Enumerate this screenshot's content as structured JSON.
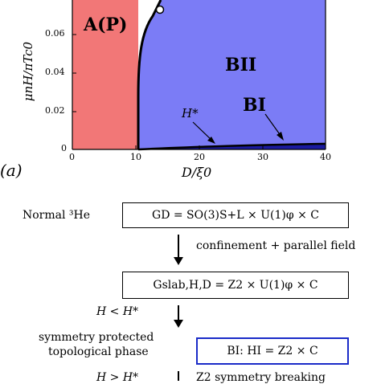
{
  "figure": {
    "panel_label": "(a)",
    "plot": {
      "ylabel": "μnH/πTc0",
      "xlabel": "D/ξ0",
      "region_A": "A(P)",
      "region_BII": "BII",
      "region_BI": "BI",
      "annotation": "H*",
      "colors": {
        "A": "#f27777",
        "B": "#7b7cf6",
        "line": "#000000",
        "BI": "#1a1aa0"
      }
    },
    "flow": {
      "normal_label": "Normal ³He",
      "box1": "GD = SO(3)S+L × U(1)φ × C",
      "step1": "confinement + parallel field",
      "box2": "Gslab,H,D = Z2 × U(1)φ × C",
      "condition1": "H < H*",
      "phase_label_line1": "symmetry protected",
      "phase_label_line2": "topological phase",
      "box3": "BI: HI = Z2 × C",
      "condition2": "H > H*",
      "step2": "Z2 symmetry breaking"
    }
  },
  "chart_data": {
    "type": "area",
    "xlabel": "D/ξ0",
    "ylabel": "μnH/πTc0",
    "xlim": [
      0,
      40
    ],
    "x_ticks": [
      "0",
      "10",
      "20",
      "30",
      "40"
    ],
    "y_ticks": [
      "0",
      "0.02",
      "0.04",
      "0.06"
    ],
    "series": [
      {
        "name": "A(P)/B boundary",
        "x": [
          10.0,
          10.0,
          10.2,
          10.6,
          11.2,
          12.0,
          13.0,
          14.0
        ],
        "y": [
          0.0,
          0.02,
          0.04,
          0.055,
          0.066,
          0.072,
          0.076,
          0.082
        ]
      },
      {
        "name": "H*",
        "x": [
          10.0,
          15,
          20,
          25,
          30,
          35,
          40
        ],
        "y": [
          0.0015,
          0.0022,
          0.0026,
          0.0028,
          0.003,
          0.0031,
          0.0032
        ]
      }
    ],
    "marker": {
      "x": 13.0,
      "y": 0.076
    }
  }
}
